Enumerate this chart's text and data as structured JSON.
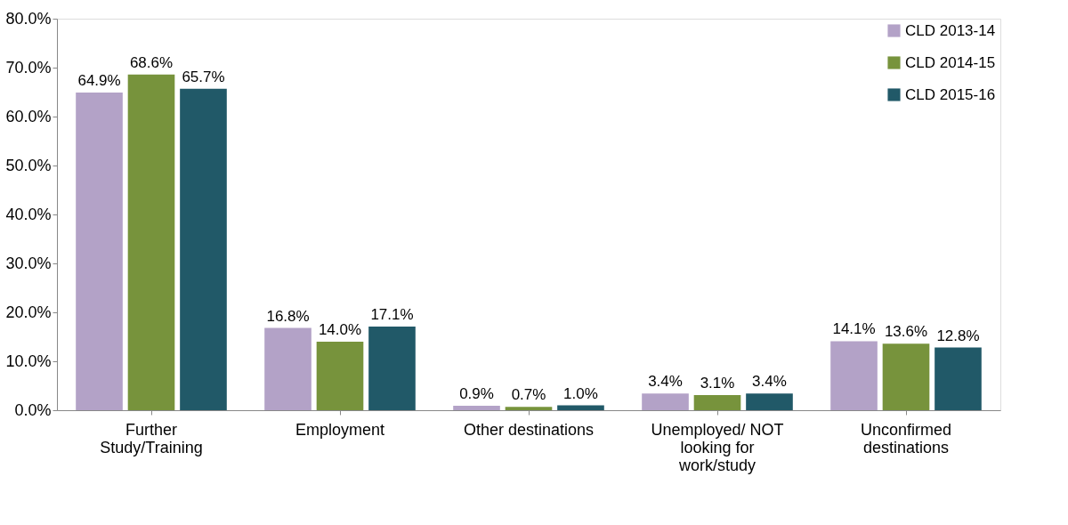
{
  "chart_data": {
    "type": "bar",
    "categories": [
      "Further Study/Training",
      "Employment",
      "Other destinations",
      "Unemployed/ NOT looking for work/study",
      "Unconfirmed destinations"
    ],
    "series": [
      {
        "name": "CLD 2013-14",
        "color": "#b3a2c7",
        "values": [
          64.9,
          16.8,
          0.9,
          3.4,
          14.1
        ],
        "value_labels": [
          "64.9%",
          "16.8%",
          "0.9%",
          "3.4%",
          "14.1%"
        ]
      },
      {
        "name": "CLD 2014-15",
        "color": "#77933c",
        "values": [
          68.6,
          14.0,
          0.7,
          3.1,
          13.6
        ],
        "value_labels": [
          "68.6%",
          "14.0%",
          "0.7%",
          "3.1%",
          "13.6%"
        ]
      },
      {
        "name": "CLD 2015-16",
        "color": "#215968",
        "values": [
          65.7,
          17.1,
          1.0,
          3.4,
          12.8
        ],
        "value_labels": [
          "65.7%",
          "17.1%",
          "1.0%",
          "3.4%",
          "12.8%"
        ]
      }
    ],
    "ylim": [
      0,
      80
    ],
    "yticks": [
      {
        "value": 0,
        "label": "0.0%"
      },
      {
        "value": 10,
        "label": "10.0%"
      },
      {
        "value": 20,
        "label": "20.0%"
      },
      {
        "value": 30,
        "label": "30.0%"
      },
      {
        "value": 40,
        "label": "40.0%"
      },
      {
        "value": 50,
        "label": "50.0%"
      },
      {
        "value": 60,
        "label": "60.0%"
      },
      {
        "value": 70,
        "label": "70.0%"
      },
      {
        "value": 80,
        "label": "80.0%"
      }
    ],
    "grid": false,
    "legend": "top right"
  }
}
